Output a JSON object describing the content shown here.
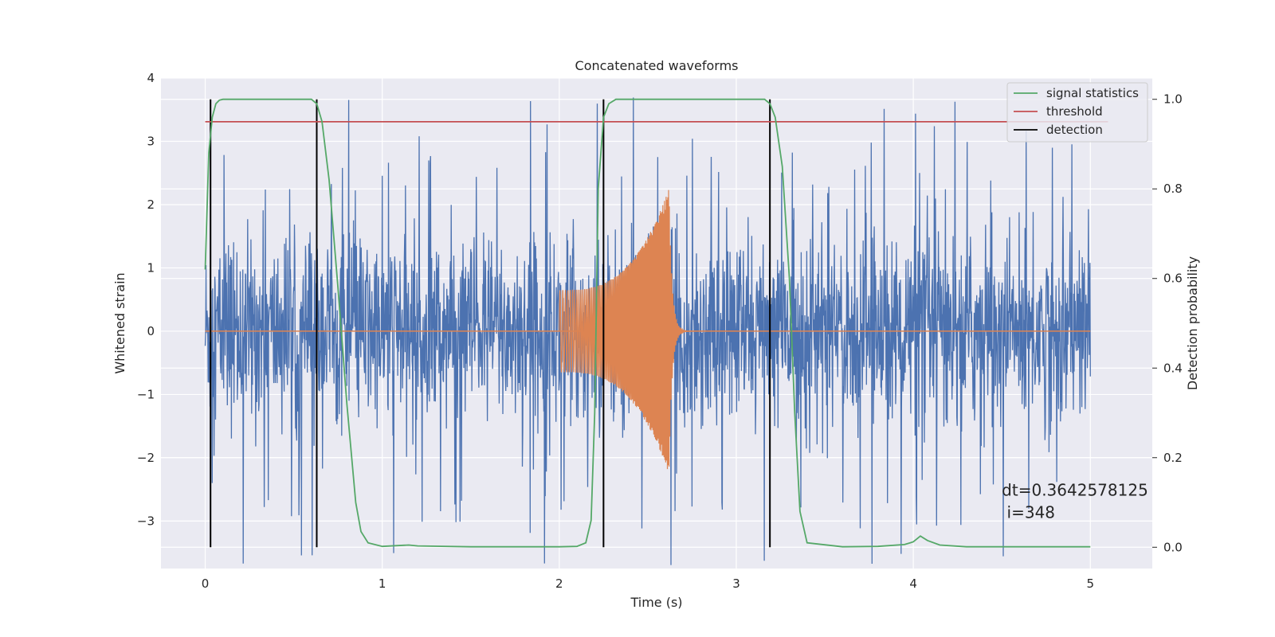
{
  "chart_data": {
    "type": "line",
    "title": "Concatenated waveforms",
    "xlabel": "Time (s)",
    "ylabel": "Whitened strain",
    "y2label": "Detection probability",
    "xlim": [
      -0.25,
      5.35
    ],
    "ylim": [
      -3.75,
      4.0
    ],
    "y2lim": [
      -0.0475,
      1.0475
    ],
    "xticks": [
      0,
      1,
      2,
      3,
      4,
      5
    ],
    "yticks": [
      -3,
      -2,
      -1,
      0,
      1,
      2,
      3,
      4
    ],
    "y2ticks": [
      0.0,
      0.2,
      0.4,
      0.6,
      0.8,
      1.0
    ],
    "grid": true,
    "legend_position": "top-right",
    "colors": {
      "strain": "#4c72b0",
      "injection": "#dd8452",
      "signal_statistics": "#55a868",
      "threshold": "#c44e52",
      "detection": "#000000",
      "plot_bg": "#eaeaf2",
      "grid": "#ffffff"
    },
    "strain": {
      "x_range": [
        0,
        5
      ],
      "axis": "left",
      "typical_envelope": 1.5,
      "max_amplitude": 3.7
    },
    "injection": {
      "axis": "left",
      "start": 2.0,
      "peak_time": 2.62,
      "end": 3.0,
      "start_amplitude": 0.65,
      "peak_amplitude": 2.25
    },
    "series": [
      {
        "name": "signal statistics",
        "axis": "right",
        "x": [
          0,
          0.02,
          0.04,
          0.06,
          0.08,
          0.1,
          0.15,
          0.3,
          0.5,
          0.6,
          0.63,
          0.66,
          0.7,
          0.75,
          0.8,
          0.85,
          0.88,
          0.92,
          1.0,
          1.15,
          1.2,
          1.5,
          2.0,
          2.1,
          2.15,
          2.18,
          2.2,
          2.22,
          2.25,
          2.28,
          2.32,
          2.4,
          2.6,
          3.0,
          3.1,
          3.16,
          3.19,
          3.22,
          3.26,
          3.3,
          3.33,
          3.36,
          3.4,
          3.6,
          3.8,
          3.95,
          4.0,
          4.04,
          4.08,
          4.15,
          4.3,
          5.0
        ],
        "y": [
          0.62,
          0.88,
          0.96,
          0.99,
          0.998,
          1.0,
          1.0,
          1.0,
          1.0,
          1.0,
          0.99,
          0.95,
          0.82,
          0.58,
          0.32,
          0.1,
          0.035,
          0.01,
          0.002,
          0.005,
          0.003,
          0.001,
          0.001,
          0.002,
          0.01,
          0.06,
          0.3,
          0.8,
          0.96,
          0.99,
          1.0,
          1.0,
          1.0,
          1.0,
          1.0,
          1.0,
          0.99,
          0.96,
          0.85,
          0.6,
          0.3,
          0.08,
          0.01,
          0.001,
          0.002,
          0.006,
          0.012,
          0.025,
          0.015,
          0.005,
          0.001,
          0.001
        ]
      },
      {
        "name": "threshold",
        "axis": "right",
        "x": [
          0,
          5.1
        ],
        "y": [
          0.95,
          0.95
        ]
      },
      {
        "name": "detection",
        "axis": "right",
        "type": "vlines",
        "x": [
          0.03,
          0.63,
          2.25,
          3.19
        ],
        "ymin": 0,
        "ymax": 1
      }
    ],
    "annotation": {
      "line1": "dt=0.3642578125",
      "line2": " i=348",
      "x": 4.5,
      "y": -2.6
    }
  }
}
